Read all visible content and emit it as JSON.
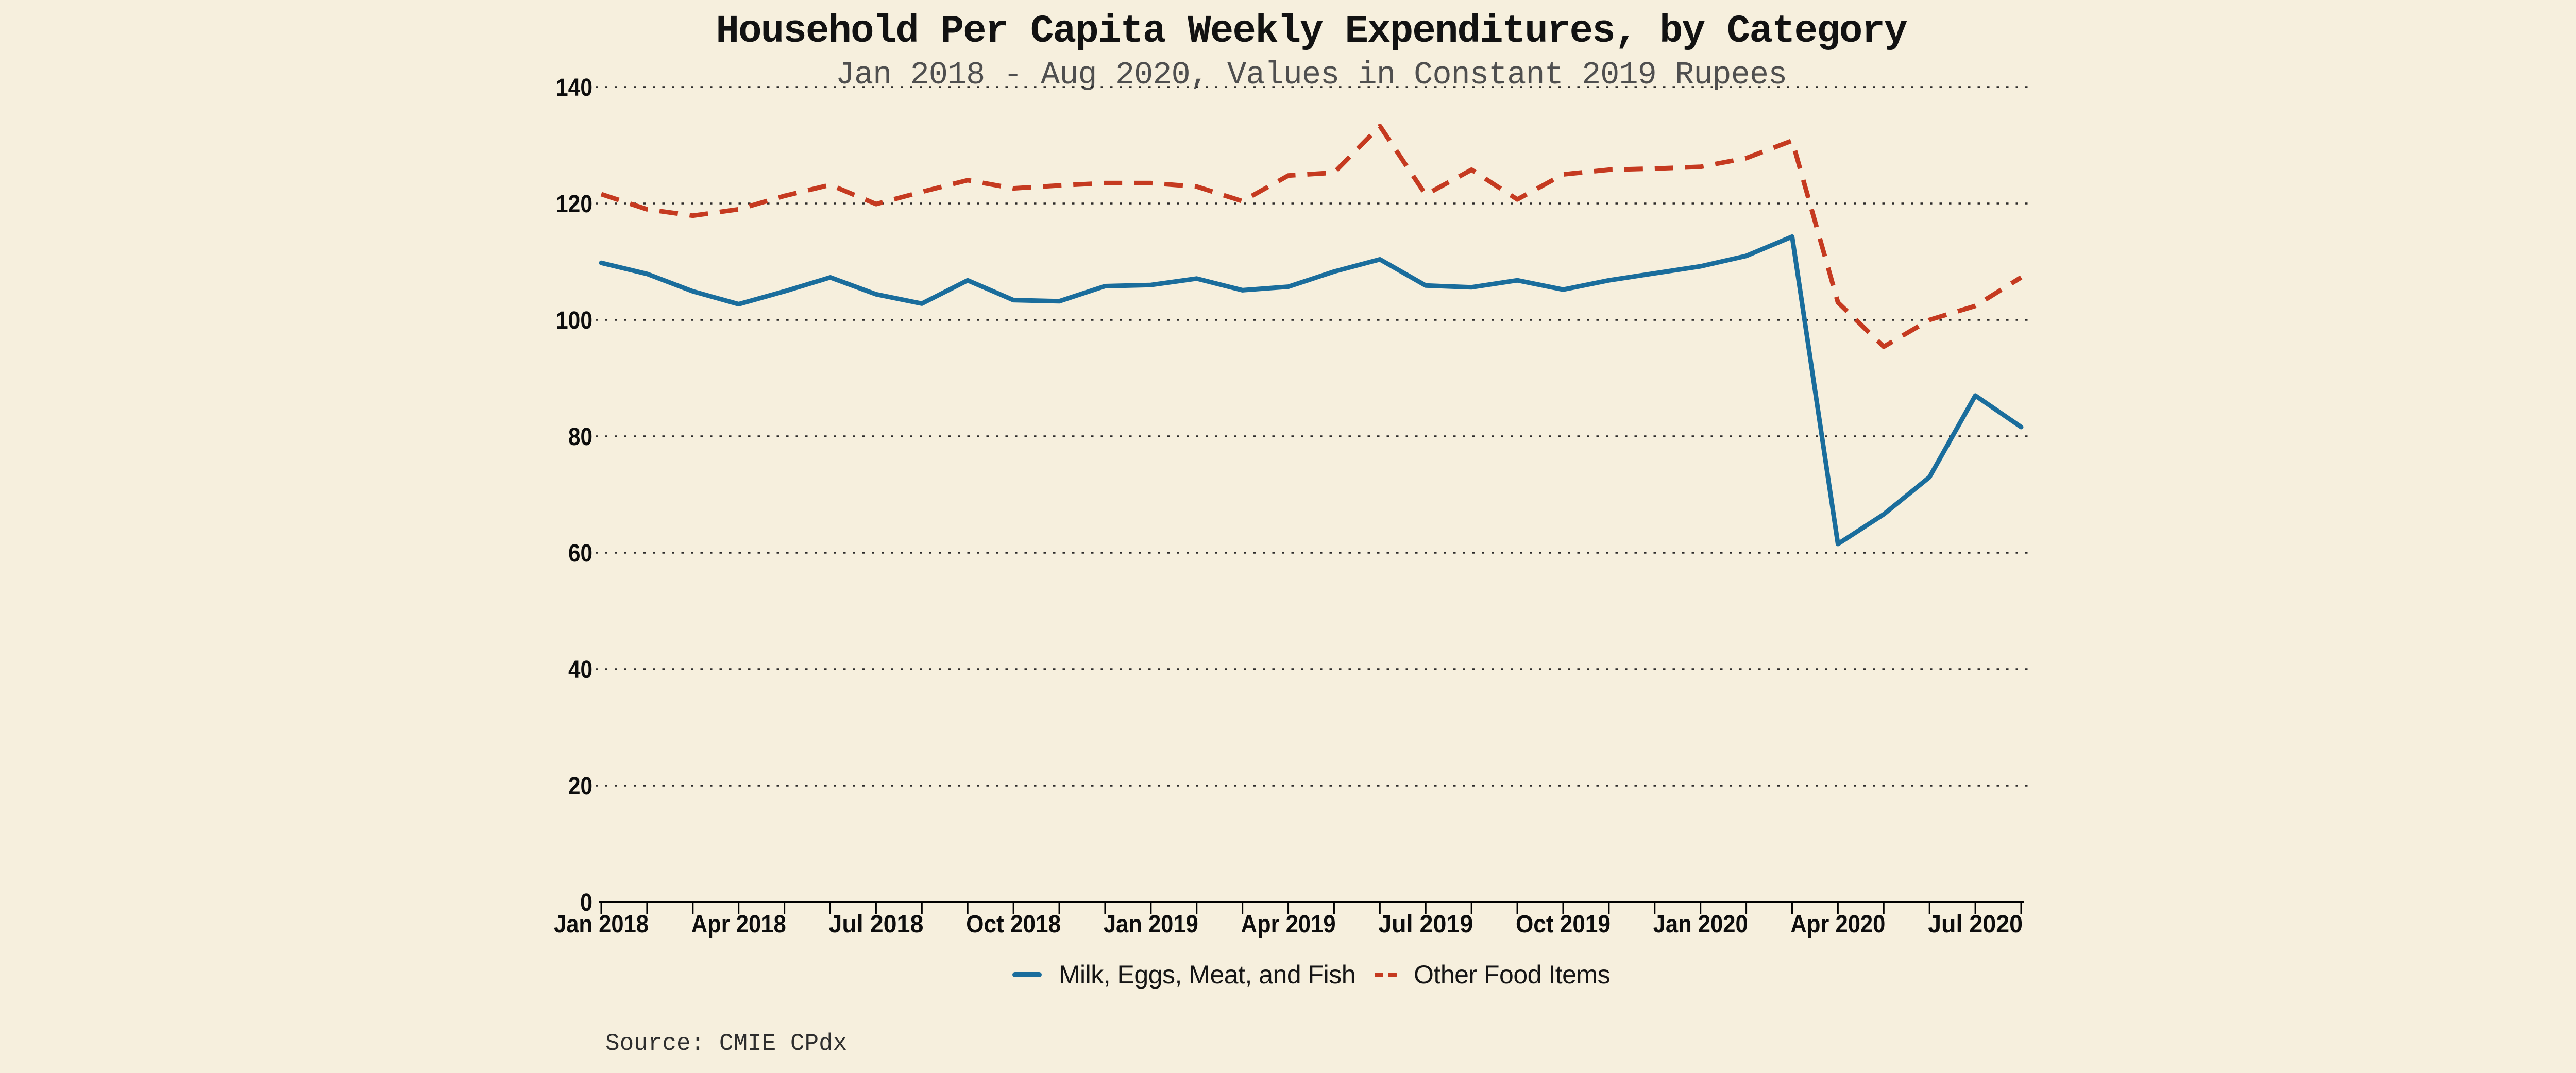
{
  "title": "Household Per Capita Weekly Expenditures, by Category",
  "subtitle": "Jan 2018 - Aug 2020, Values in Constant 2019 Rupees",
  "source": "Source: CMIE CPdx",
  "colors": {
    "background": "#f6efdd",
    "milk_series": "#1a6d9c",
    "other_series": "#c53a20",
    "grid": "#1a1a1a",
    "axis": "#000000",
    "title_text": "#121212",
    "subtitle_text": "#4f4f4f",
    "tick_text": "#0d0d0d",
    "source_text": "#2e2e2e"
  },
  "legend": {
    "items": [
      {
        "label": "Milk, Eggs, Meat, and Fish",
        "swatch": "solid-line",
        "color_ref": "milk_series"
      },
      {
        "label": "Other Food Items",
        "swatch": "dashed-line",
        "color_ref": "other_series"
      }
    ]
  },
  "chart_data": {
    "type": "line",
    "title": "Household Per Capita Weekly Expenditures, by Category",
    "subtitle": "Jan 2018 - Aug 2020, Values in Constant 2019 Rupees",
    "xlabel": "",
    "ylabel": "",
    "ylim": [
      0,
      145.7
    ],
    "y_ticks": [
      0,
      20,
      40,
      60,
      80,
      100,
      120,
      140
    ],
    "grid": "horizontal-dotted",
    "legend_position": "bottom",
    "x_tick_label_every_n_months": 3,
    "x_tick_labels": [
      "Jan 2018",
      "Apr 2018",
      "Jul 2018",
      "Oct 2018",
      "Jan 2019",
      "Apr 2019",
      "Jul 2019",
      "Oct 2019",
      "Jan 2020",
      "Apr 2020",
      "Jul 2020"
    ],
    "x": [
      "Jan 2018",
      "Feb 2018",
      "Mar 2018",
      "Apr 2018",
      "May 2018",
      "Jun 2018",
      "Jul 2018",
      "Aug 2018",
      "Sep 2018",
      "Oct 2018",
      "Nov 2018",
      "Dec 2018",
      "Jan 2019",
      "Feb 2019",
      "Mar 2019",
      "Apr 2019",
      "May 2019",
      "Jun 2019",
      "Jul 2019",
      "Aug 2019",
      "Sep 2019",
      "Oct 2019",
      "Nov 2019",
      "Dec 2019",
      "Jan 2020",
      "Feb 2020",
      "Mar 2020",
      "Apr 2020",
      "May 2020",
      "Jun 2020",
      "Jul 2020",
      "Aug 2020"
    ],
    "series": [
      {
        "name": "Milk, Eggs, Meat, and Fish",
        "style": "solid",
        "color_ref": "milk_series",
        "values": [
          109.8,
          107.9,
          104.9,
          102.7,
          104.9,
          107.3,
          104.4,
          102.8,
          106.8,
          103.4,
          103.2,
          105.8,
          106.0,
          107.1,
          105.1,
          105.7,
          108.3,
          110.4,
          105.9,
          105.6,
          106.8,
          105.2,
          106.8,
          108.0,
          109.2,
          111.0,
          114.3,
          61.5,
          66.6,
          73.0,
          87.0,
          81.6
        ]
      },
      {
        "name": "Other Food Items",
        "style": "dashed",
        "color_ref": "other_series",
        "values": [
          121.6,
          119.0,
          117.9,
          119.0,
          121.3,
          123.2,
          119.9,
          122.0,
          124.0,
          122.6,
          123.1,
          123.5,
          123.5,
          122.9,
          120.4,
          124.8,
          125.3,
          133.3,
          121.5,
          125.8,
          120.7,
          125.0,
          125.8,
          126.0,
          126.3,
          127.8,
          130.8,
          103.0,
          95.4,
          100.0,
          102.4,
          107.3
        ]
      }
    ]
  }
}
